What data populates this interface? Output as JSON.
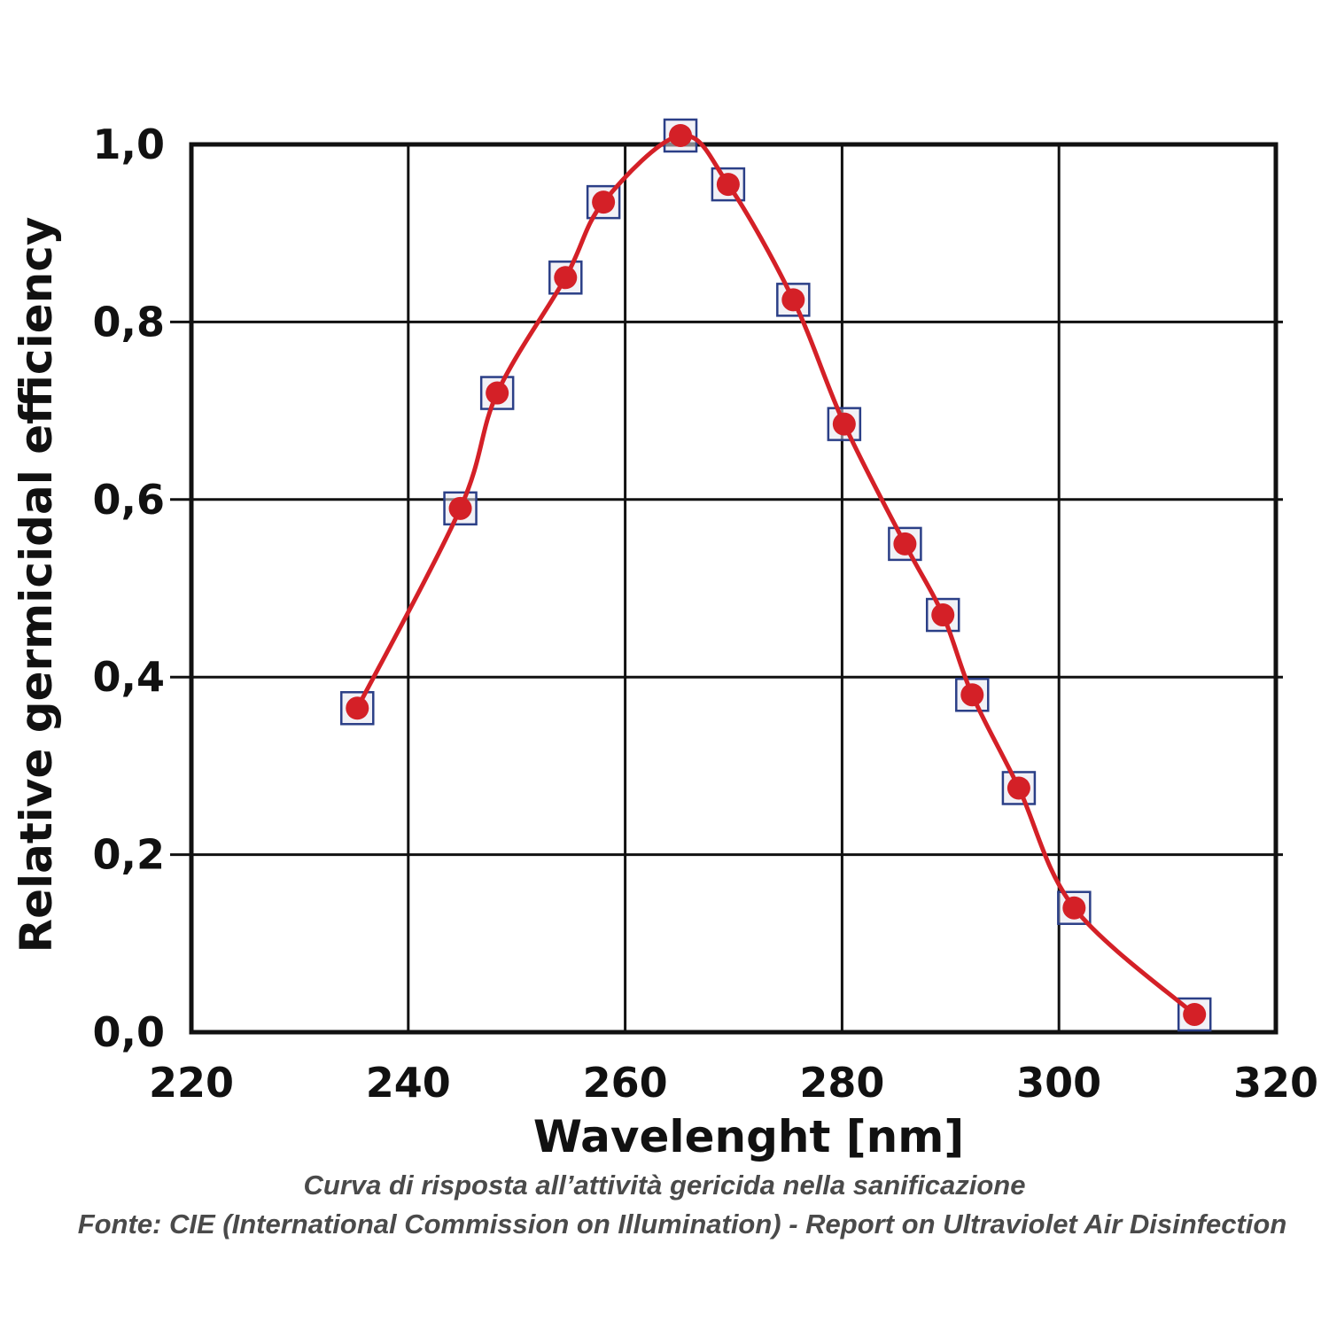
{
  "chart_data": {
    "type": "scatter",
    "xlabel": "Wavelenght [nm]",
    "ylabel": "Relative germicidal efficiency",
    "xlim": [
      220,
      320
    ],
    "ylim": [
      0,
      1
    ],
    "x_ticks": [
      220,
      240,
      260,
      280,
      300,
      320
    ],
    "y_ticks": [
      0.0,
      0.2,
      0.4,
      0.6,
      0.8,
      1.0
    ],
    "x_tick_labels": [
      "220",
      "240",
      "260",
      "280",
      "300",
      "320"
    ],
    "y_tick_labels": [
      "0,0",
      "0,2",
      "0,4",
      "0,6",
      "0,8",
      "1,0"
    ],
    "grid": true,
    "series": [
      {
        "marker": "square",
        "color": "#2b3f87",
        "x": [
          235.3,
          244.8,
          248.2,
          254.5,
          258.0,
          265.1,
          269.5,
          275.5,
          280.2,
          285.8,
          289.3,
          292.0,
          296.3,
          301.4,
          312.5
        ],
        "values": [
          0.365,
          0.59,
          0.72,
          0.85,
          0.935,
          1.01,
          0.955,
          0.825,
          0.685,
          0.55,
          0.47,
          0.38,
          0.275,
          0.14,
          0.02
        ]
      },
      {
        "marker": "circle",
        "line": "smooth",
        "color": "#d42027",
        "x": [
          235.3,
          244.8,
          248.2,
          254.5,
          258.0,
          265.1,
          269.5,
          275.5,
          280.2,
          285.8,
          289.3,
          292.0,
          296.3,
          301.4,
          312.5
        ],
        "values": [
          0.365,
          0.59,
          0.72,
          0.85,
          0.935,
          1.01,
          0.955,
          0.825,
          0.685,
          0.55,
          0.47,
          0.38,
          0.275,
          0.14,
          0.02
        ]
      }
    ]
  },
  "caption": {
    "line1": "Curva di risposta all’attività gericida nella sanificazione",
    "line2": "Fonte: CIE (International Commission on Illumination) - Report on Ultraviolet Air Disinfection"
  },
  "colors": {
    "curve": "#d42027",
    "marker_square": "#2b3f87",
    "grid": "#111111",
    "caption": "#4a4a4a"
  }
}
